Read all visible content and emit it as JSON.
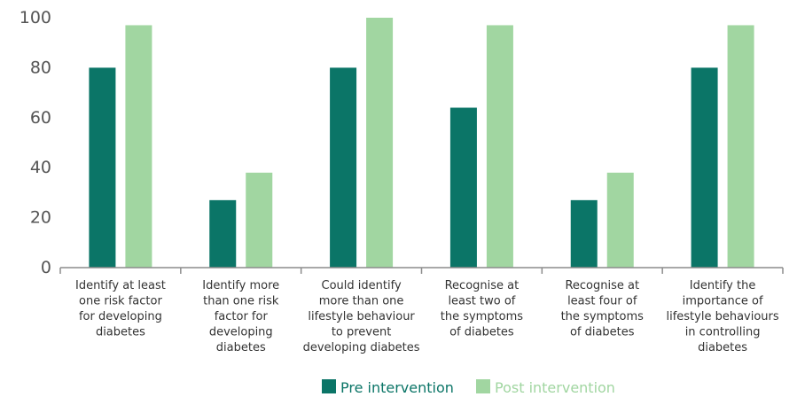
{
  "chart_data": {
    "type": "bar",
    "categories": [
      "Identify at least one risk factor for developing diabetes",
      "Identify more than one risk factor for developing diabetes",
      "Could identify more than one lifestyle behaviour to prevent developing diabetes",
      "Recognise at least two of the symptoms of diabetes",
      "Recognise at least four of the symptoms of diabetes",
      "Identify the importance of lifestyle behaviours in controlling diabetes"
    ],
    "category_lines": [
      [
        "Identify at least",
        "one risk factor",
        "for developing",
        "diabetes"
      ],
      [
        "Identify more",
        "than one risk",
        "factor for",
        "developing",
        "diabetes"
      ],
      [
        "Could identify",
        "more than one",
        "lifestyle behaviour",
        "to prevent",
        "developing diabetes"
      ],
      [
        "Recognise at",
        "least two of",
        "the symptoms",
        "of diabetes"
      ],
      [
        "Recognise at",
        "least four of",
        "the symptoms",
        "of diabetes"
      ],
      [
        "Identify the",
        "importance of",
        "lifestyle behaviours",
        "in controlling",
        "diabetes"
      ]
    ],
    "series": [
      {
        "name": "Pre intervention",
        "color": "#0b7567",
        "values": [
          80,
          27,
          80,
          64,
          27,
          80
        ]
      },
      {
        "name": "Post intervention",
        "color": "#a1d6a1",
        "values": [
          97,
          38,
          100,
          97,
          38,
          97
        ]
      }
    ],
    "yticks": [
      0,
      20,
      40,
      60,
      80,
      100
    ],
    "ylim": [
      0,
      100
    ],
    "xlabel": "",
    "ylabel": "",
    "title": "",
    "grid": false,
    "legend_position": "bottom-center"
  }
}
